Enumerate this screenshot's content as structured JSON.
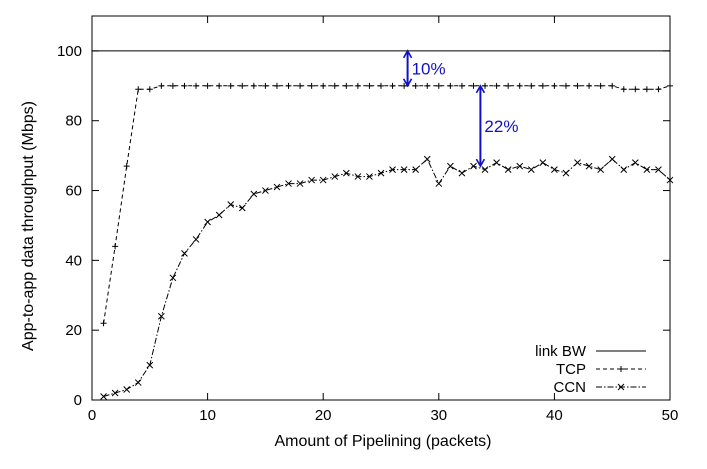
{
  "chart_data": {
    "type": "line",
    "title": "",
    "xlabel": "Amount of Pipelining (packets)",
    "ylabel": "App-to-app data throughput (Mbps)",
    "xlim": [
      0,
      50
    ],
    "ylim": [
      0,
      110
    ],
    "x_ticks": [
      0,
      10,
      20,
      30,
      40,
      50
    ],
    "y_ticks": [
      0,
      20,
      40,
      60,
      80,
      100
    ],
    "grid": false,
    "legend_position": "bottom-right",
    "series": [
      {
        "name": "link BW",
        "style": "solid",
        "marker": "none",
        "x": [
          0,
          50
        ],
        "y": [
          100,
          100
        ]
      },
      {
        "name": "TCP",
        "style": "dashed",
        "marker": "plus",
        "x": [
          1,
          2,
          3,
          4,
          5,
          6,
          7,
          8,
          9,
          10,
          11,
          12,
          13,
          14,
          15,
          16,
          17,
          18,
          19,
          20,
          21,
          22,
          23,
          24,
          25,
          26,
          27,
          28,
          29,
          30,
          31,
          32,
          33,
          34,
          35,
          36,
          37,
          38,
          39,
          40,
          41,
          42,
          43,
          44,
          45,
          46,
          47,
          48,
          49,
          50
        ],
        "y": [
          22,
          44,
          67,
          89,
          89,
          90,
          90,
          90,
          90,
          90,
          90,
          90,
          90,
          90,
          90,
          90,
          90,
          90,
          90,
          90,
          90,
          90,
          90,
          90,
          90,
          90,
          90,
          90,
          90,
          90,
          90,
          90,
          90,
          90,
          90,
          90,
          90,
          90,
          90,
          90,
          90,
          90,
          90,
          90,
          90,
          89,
          89,
          89,
          89,
          90
        ]
      },
      {
        "name": "CCN",
        "style": "dash-dot",
        "marker": "x",
        "x": [
          1,
          2,
          3,
          4,
          5,
          6,
          7,
          8,
          9,
          10,
          11,
          12,
          13,
          14,
          15,
          16,
          17,
          18,
          19,
          20,
          21,
          22,
          23,
          24,
          25,
          26,
          27,
          28,
          29,
          30,
          31,
          32,
          33,
          34,
          35,
          36,
          37,
          38,
          39,
          40,
          41,
          42,
          43,
          44,
          45,
          46,
          47,
          48,
          49,
          50
        ],
        "y": [
          1,
          2,
          3,
          5,
          10,
          24,
          35,
          42,
          46,
          51,
          53,
          56,
          55,
          59,
          60,
          61,
          62,
          62,
          63,
          63,
          64,
          65,
          64,
          64,
          65,
          66,
          66,
          66,
          69,
          62,
          67,
          65,
          67,
          66,
          68,
          66,
          67,
          66,
          68,
          66,
          65,
          68,
          67,
          66,
          69,
          66,
          68,
          66,
          66,
          63
        ]
      }
    ],
    "annotations": [
      {
        "text": "10%",
        "color": "#1010c8",
        "x": 27.3,
        "y_from": 100,
        "y_to": 90
      },
      {
        "text": "22%",
        "color": "#1010c8",
        "x": 33.6,
        "y_from": 90,
        "y_to": 67
      }
    ]
  }
}
